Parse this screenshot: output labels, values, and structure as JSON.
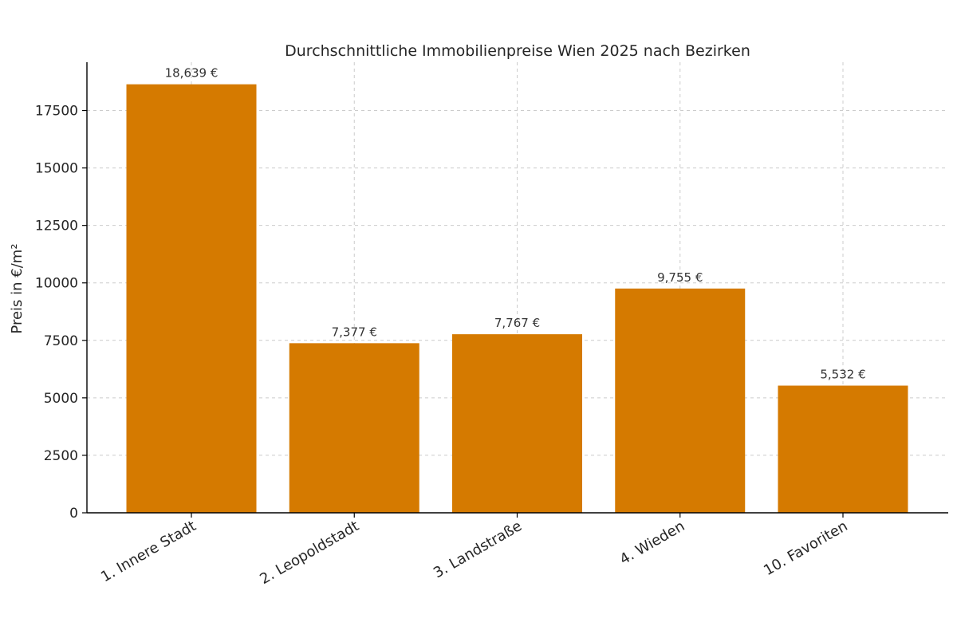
{
  "chart_data": {
    "type": "bar",
    "title": "Durchschnittliche Immobilienpreise Wien 2025 nach Bezirken",
    "xlabel": "",
    "ylabel": "Preis in €/m²",
    "categories": [
      "1. Innere Stadt",
      "2. Leopoldstadt",
      "3. Landstraße",
      "4. Wieden",
      "10. Favoriten"
    ],
    "values": [
      18639,
      7377,
      7767,
      9755,
      5532
    ],
    "value_labels": [
      "18,639 €",
      "7,377 €",
      "7,767 €",
      "9,755 €",
      "5,532 €"
    ],
    "ylim": [
      0,
      19600
    ],
    "yticks": [
      0,
      2500,
      5000,
      7500,
      10000,
      12500,
      15000,
      17500
    ],
    "ytick_labels": [
      "0",
      "2500",
      "5000",
      "7500",
      "10000",
      "12500",
      "15000",
      "17500"
    ],
    "grid": true,
    "legend": "none",
    "colors": {
      "bar": "#d57a00",
      "grid": "#cccccc",
      "axis": "#000000",
      "text": "#262626"
    }
  }
}
